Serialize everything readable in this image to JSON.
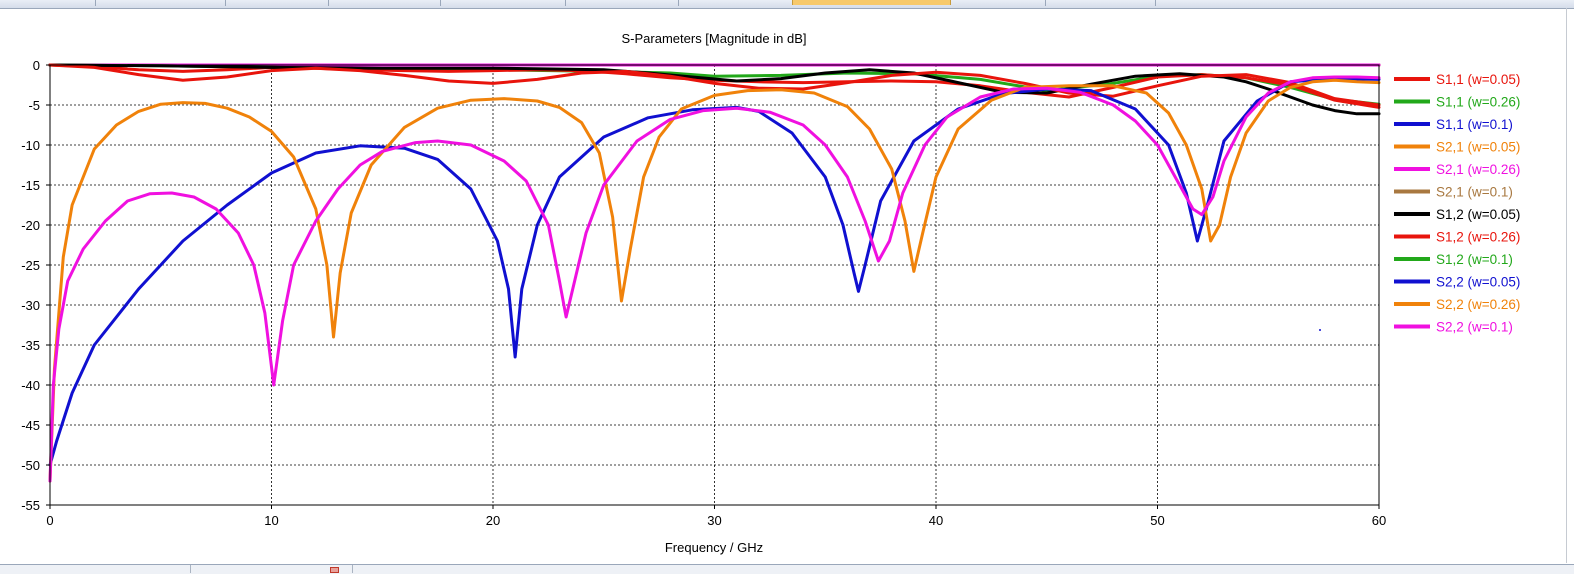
{
  "chart_data": {
    "type": "line",
    "title": "S-Parameters [Magnitude in dB]",
    "xlabel": "Frequency / GHz",
    "ylabel": "",
    "xlim": [
      0,
      60
    ],
    "ylim": [
      -55,
      0
    ],
    "xticks": [
      0,
      10,
      20,
      30,
      40,
      50,
      60
    ],
    "yticks": [
      0,
      -5,
      -10,
      -15,
      -20,
      -25,
      -30,
      -35,
      -40,
      -45,
      -50,
      -55
    ],
    "grid": true,
    "legend_position": "right",
    "series": [
      {
        "name": "S1,1 (w=0.05)",
        "color": "#e8140c",
        "x": [
          0,
          2,
          4,
          6,
          8,
          10,
          12,
          14,
          16,
          18,
          20,
          22,
          24,
          26,
          28,
          30,
          32,
          34,
          36,
          38,
          40,
          42,
          44,
          46,
          48,
          50,
          52,
          54,
          56,
          58,
          60
        ],
        "y": [
          0,
          -0.2,
          -0.6,
          -0.8,
          -0.6,
          -0.3,
          -0.4,
          -0.6,
          -0.7,
          -0.8,
          -0.7,
          -0.6,
          -0.7,
          -1.1,
          -1.6,
          -1.9,
          -2.1,
          -2.2,
          -2.1,
          -2.0,
          -2.1,
          -2.6,
          -3.4,
          -4.0,
          -2.8,
          -1.5,
          -1.2,
          -1.6,
          -2.5,
          -4.4,
          -5.3
        ]
      },
      {
        "name": "S1,1 (w=0.26)",
        "color": "#22a81a",
        "x": [
          0,
          5,
          10,
          15,
          20,
          25,
          28,
          30,
          33,
          36,
          39,
          42,
          45,
          48,
          50,
          52,
          54,
          56,
          58,
          60
        ],
        "y": [
          0,
          -0.1,
          -0.3,
          -0.5,
          -0.6,
          -0.8,
          -1.0,
          -1.4,
          -1.3,
          -1.0,
          -1.1,
          -1.8,
          -3.2,
          -2.3,
          -1.4,
          -1.2,
          -1.6,
          -2.8,
          -4.3,
          -4.9
        ]
      },
      {
        "name": "S1,1 (w=0.1)",
        "color": "#1010d0",
        "x": [
          0,
          0.3,
          1,
          2,
          4,
          6,
          8,
          10,
          12,
          14,
          16,
          17.5,
          19,
          20.2,
          20.7,
          21.0,
          21.3,
          22,
          23,
          25,
          27,
          29,
          31,
          32,
          33.5,
          35,
          35.8,
          36.3,
          36.5,
          36.8,
          37.5,
          39,
          41,
          43,
          45,
          47,
          49,
          50.5,
          51.3,
          51.8,
          52.3,
          53,
          54.5,
          56,
          58,
          60
        ],
        "y": [
          -50,
          -47,
          -41,
          -35,
          -28,
          -22,
          -17.5,
          -13.5,
          -11,
          -10.1,
          -10.4,
          -11.8,
          -15.5,
          -22,
          -28,
          -36.5,
          -28,
          -20,
          -14,
          -9,
          -6.6,
          -5.6,
          -5.3,
          -5.8,
          -8.5,
          -14,
          -20,
          -26,
          -28.3,
          -25,
          -17,
          -9.5,
          -5.5,
          -3.6,
          -3.0,
          -3.2,
          -5.5,
          -10,
          -16,
          -22,
          -17,
          -9.5,
          -4.5,
          -2.1,
          -1.7,
          -1.8
        ]
      },
      {
        "name": "S2,1 (w=0.05)",
        "color": "#f0820a",
        "x": [
          0,
          0.2,
          0.6,
          1,
          2,
          3,
          4,
          5,
          6,
          7,
          8,
          9,
          10,
          11,
          12,
          12.5,
          12.8,
          13.1,
          13.6,
          14.5,
          16,
          17.5,
          19,
          20.5,
          22,
          23,
          24,
          24.8,
          25.4,
          25.8,
          26.2,
          26.8,
          27.5,
          28.5,
          30,
          31.5,
          33,
          34.5,
          36,
          37,
          38,
          38.6,
          39.0,
          39.4,
          40,
          41,
          42.5,
          44,
          46,
          48,
          49.5,
          50.5,
          51.3,
          52,
          52.4,
          52.8,
          53.3,
          54,
          55,
          56,
          57,
          58,
          59,
          60
        ],
        "y": [
          -52,
          -38,
          -24,
          -17.5,
          -10.5,
          -7.5,
          -5.8,
          -4.9,
          -4.7,
          -4.8,
          -5.4,
          -6.5,
          -8.3,
          -11.5,
          -18,
          -25,
          -34,
          -26,
          -18.5,
          -12.5,
          -7.8,
          -5.4,
          -4.4,
          -4.2,
          -4.5,
          -5.3,
          -7.2,
          -11,
          -19,
          -29.5,
          -23,
          -14,
          -9,
          -5.5,
          -3.8,
          -3.2,
          -3.1,
          -3.5,
          -5.2,
          -8,
          -13,
          -19.5,
          -25.8,
          -21,
          -14,
          -8,
          -4.4,
          -2.8,
          -2.6,
          -2.6,
          -3.5,
          -6,
          -10,
          -15.5,
          -22,
          -20,
          -14,
          -8.5,
          -4.5,
          -2.8,
          -2.1,
          -1.9,
          -2.1,
          -2.2
        ]
      },
      {
        "name": "S2,1 (w=0.26)",
        "color": "#f010e0",
        "x": [
          0,
          0.15,
          0.4,
          0.8,
          1.5,
          2.5,
          3.5,
          4.5,
          5.5,
          6.5,
          7.5,
          8.5,
          9.2,
          9.7,
          10.1,
          10.5,
          11,
          12,
          13,
          14,
          15,
          16.5,
          17.5,
          19,
          20.5,
          21.5,
          22.5,
          23.0,
          23.3,
          23.6,
          24.2,
          25,
          26.5,
          28,
          29.5,
          31,
          32.5,
          34,
          35,
          36,
          36.8,
          37.4,
          37.9,
          38.5,
          39.5,
          40.5,
          42,
          43.5,
          45,
          46.5,
          48,
          49,
          50,
          51,
          51.6,
          52.0,
          52.5,
          53,
          54,
          55,
          56,
          57,
          58,
          59,
          60
        ],
        "y": [
          -52,
          -40,
          -33,
          -27,
          -23,
          -19.5,
          -17,
          -16.1,
          -16,
          -16.5,
          -18,
          -21,
          -25,
          -31,
          -40,
          -32,
          -25,
          -19.5,
          -15.5,
          -12.5,
          -10.8,
          -9.7,
          -9.5,
          -10,
          -12,
          -14.5,
          -20,
          -27,
          -31.5,
          -28,
          -21,
          -15,
          -9.5,
          -6.8,
          -5.7,
          -5.4,
          -5.9,
          -7.5,
          -10,
          -14,
          -19.5,
          -24.5,
          -22,
          -16,
          -10,
          -6.5,
          -4,
          -3,
          -2.9,
          -3.4,
          -5,
          -7,
          -10,
          -15,
          -18,
          -18.7,
          -16.5,
          -12,
          -6.5,
          -3.5,
          -2.1,
          -1.6,
          -1.5,
          -1.5,
          -1.6
        ]
      },
      {
        "name": "S2,1 (w=0.1)",
        "color": "#a87840",
        "x": [
          0,
          60
        ],
        "y": [
          0,
          0
        ]
      },
      {
        "name": "S1,2 (w=0.05)",
        "color": "#000000",
        "x": [
          0,
          5,
          10,
          15,
          20,
          25,
          27,
          29,
          31,
          33,
          35,
          37,
          39,
          41,
          43,
          45,
          47,
          49,
          51,
          53,
          54,
          55,
          56,
          57,
          58,
          59,
          60
        ],
        "y": [
          0,
          -0.1,
          -0.3,
          -0.4,
          -0.4,
          -0.6,
          -1.0,
          -1.5,
          -2.0,
          -1.7,
          -1.0,
          -0.6,
          -1.0,
          -2.2,
          -3.4,
          -3.5,
          -2.4,
          -1.4,
          -1.1,
          -1.5,
          -2.1,
          -3.0,
          -4.0,
          -5.0,
          -5.7,
          -6.1,
          -6.1
        ]
      },
      {
        "name": "S1,2 (w=0.26)",
        "color": "#e8140c",
        "x": [
          0,
          2,
          4,
          6,
          8,
          10,
          12,
          14,
          16,
          18,
          20,
          22,
          24,
          26,
          28,
          30,
          32,
          34,
          36,
          38,
          40,
          42,
          44,
          46,
          48,
          50,
          52,
          54,
          56,
          58,
          60
        ],
        "y": [
          0,
          -0.3,
          -1.2,
          -1.9,
          -1.5,
          -0.7,
          -0.4,
          -0.7,
          -1.3,
          -2.0,
          -2.3,
          -1.8,
          -1.0,
          -0.8,
          -1.4,
          -2.3,
          -2.9,
          -3.0,
          -2.2,
          -1.3,
          -0.9,
          -1.3,
          -2.3,
          -3.5,
          -3.9,
          -2.6,
          -1.4,
          -1.2,
          -2.2,
          -4.2,
          -5.0
        ]
      },
      {
        "name": "S1,2 (w=0.1)",
        "color": "#22a81a",
        "x": [
          0,
          60
        ],
        "y": [
          0,
          0
        ]
      },
      {
        "name": "S2,2 (w=0.05)",
        "color": "#1010d0",
        "x": [
          0,
          60
        ],
        "y": [
          0,
          0
        ]
      },
      {
        "name": "S2,2 (w=0.26)",
        "color": "#f0820a",
        "x": [
          0,
          60
        ],
        "y": [
          0,
          0
        ]
      },
      {
        "name": "S2,2 (w=0.1)",
        "color": "#f010e0",
        "x": [
          0,
          60
        ],
        "y": [
          0,
          0
        ]
      }
    ]
  }
}
